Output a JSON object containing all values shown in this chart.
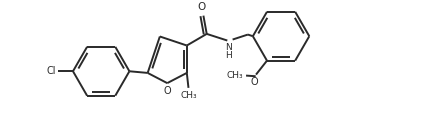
{
  "bg_color": "#ffffff",
  "line_color": "#2a2a2a",
  "line_width": 1.4,
  "figsize": [
    4.48,
    1.4
  ],
  "dpi": 100,
  "xlim": [
    0.0,
    10.5
  ],
  "ylim": [
    -0.5,
    3.5
  ]
}
